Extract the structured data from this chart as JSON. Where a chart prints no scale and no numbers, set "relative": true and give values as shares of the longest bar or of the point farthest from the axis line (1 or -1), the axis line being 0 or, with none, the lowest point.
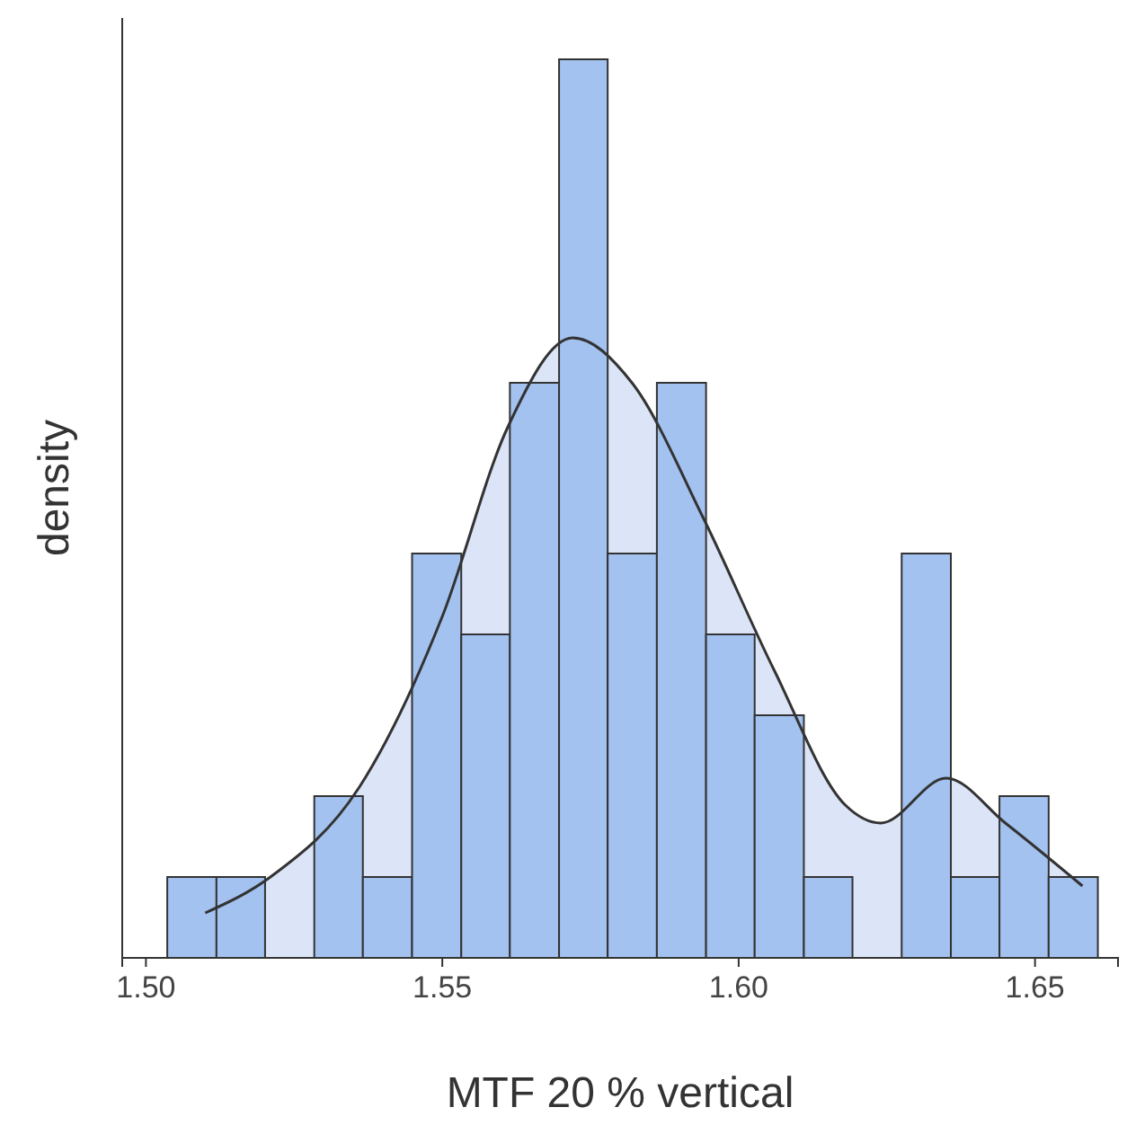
{
  "chart_data": {
    "type": "histogram",
    "relative": true,
    "xlabel": "MTF 20 % vertical",
    "ylabel": "density",
    "bins": [
      1.5036,
      1.5119,
      1.5201,
      1.5284,
      1.5366,
      1.5449,
      1.5532,
      1.5614,
      1.5697,
      1.5779,
      1.5862,
      1.5945,
      1.6027,
      1.611,
      1.6192,
      1.6275,
      1.6358,
      1.644,
      1.6523,
      1.6606
    ],
    "values": [
      0.09,
      0.09,
      0,
      0.18,
      0.09,
      0.45,
      0.36,
      0.64,
      1,
      0.45,
      0.64,
      0.36,
      0.27,
      0.09,
      0,
      0.45,
      0.09,
      0.18,
      0.09
    ],
    "color": "#a3c2f0",
    "series": [
      {
        "type": "area",
        "color": "#dbe5f7",
        "x": [
          1.51,
          1.521,
          1.536,
          1.55,
          1.561,
          1.572,
          1.582,
          1.594,
          1.606,
          1.618,
          1.624,
          1.635,
          1.645,
          1.658
        ],
        "values": [
          0.05,
          0.09,
          0.19,
          0.38,
          0.59,
          0.69,
          0.64,
          0.49,
          0.32,
          0.17,
          0.15,
          0.2,
          0.15,
          0.08
        ]
      }
    ],
    "xlim": [
      1.496,
      1.664
    ],
    "xticks": [
      {
        "value": 1.5,
        "label": "1.50"
      },
      {
        "value": 1.55,
        "label": "1.55"
      },
      {
        "value": 1.6,
        "label": "1.60"
      },
      {
        "value": 1.65,
        "label": "1.65"
      }
    ]
  }
}
